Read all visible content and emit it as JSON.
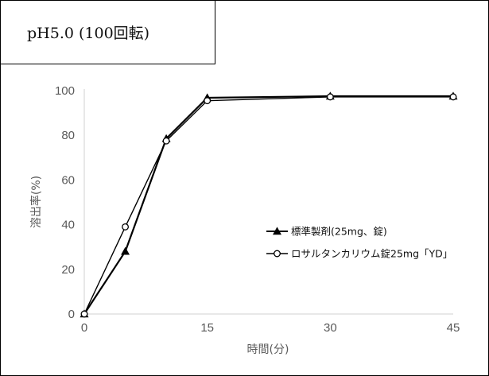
{
  "chart_data": {
    "type": "line",
    "title": "pH5.0 (100回転)",
    "xlabel": "時間(分)",
    "ylabel": "溶出率(%)",
    "xlim": [
      0,
      45
    ],
    "ylim": [
      0,
      100
    ],
    "x_ticks": [
      "0",
      "15",
      "30",
      "45"
    ],
    "y_ticks": [
      "0",
      "20",
      "40",
      "60",
      "80",
      "100"
    ],
    "grid": false,
    "legend_position": "right-center",
    "x": [
      0,
      5,
      10,
      15,
      30,
      45
    ],
    "series": [
      {
        "name": "標準製剤(25mg、錠)",
        "marker": "triangle-filled",
        "values": [
          0,
          28,
          78.5,
          96.8,
          97.5,
          97.5
        ]
      },
      {
        "name": "ロサルタンカリウム錠25mg「YD」",
        "marker": "circle-open",
        "values": [
          0,
          39,
          77.5,
          95.5,
          97.2,
          97.2
        ]
      }
    ]
  }
}
